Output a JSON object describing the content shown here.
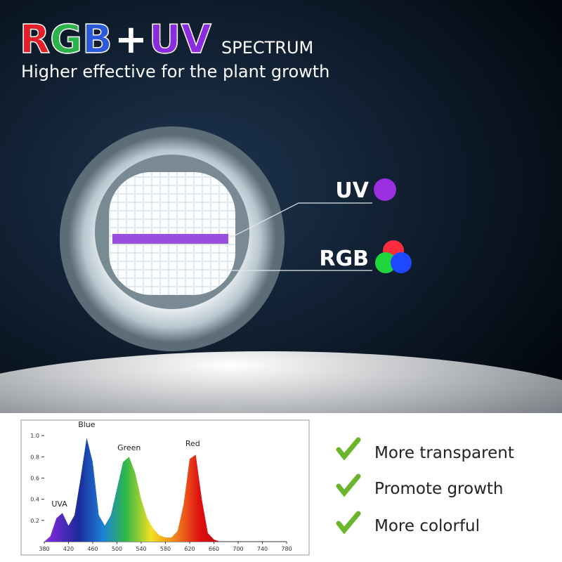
{
  "header": {
    "title_rgb": "RGB",
    "title_plus": "+",
    "title_uv": "UV",
    "title_spectrum": "SPECTRUM",
    "subtitle": "Higher effective for the plant growth"
  },
  "callouts": [
    {
      "label": "UV"
    },
    {
      "label": "RGB"
    }
  ],
  "features": [
    "More transparent",
    "Promote growth",
    "More colorful"
  ],
  "chart_data": {
    "type": "area",
    "x": [
      380,
      390,
      400,
      410,
      420,
      430,
      440,
      450,
      460,
      470,
      480,
      490,
      500,
      510,
      520,
      530,
      540,
      550,
      560,
      570,
      580,
      590,
      600,
      610,
      620,
      630,
      640,
      650,
      660,
      670,
      680,
      690,
      700
    ],
    "values": [
      0,
      0.05,
      0.22,
      0.27,
      0.15,
      0.25,
      0.6,
      0.98,
      0.75,
      0.25,
      0.15,
      0.25,
      0.5,
      0.75,
      0.8,
      0.65,
      0.4,
      0.22,
      0.12,
      0.06,
      0.04,
      0.04,
      0.1,
      0.35,
      0.78,
      0.82,
      0.4,
      0.08,
      0.02,
      0,
      0,
      0,
      0
    ],
    "annotations": [
      {
        "text": "UVA",
        "x": 405,
        "y": 0.33
      },
      {
        "text": "Blue",
        "x": 450,
        "y": 1.08
      },
      {
        "text": "Green",
        "x": 520,
        "y": 0.86
      },
      {
        "text": "Red",
        "x": 625,
        "y": 0.9
      }
    ],
    "xlim": [
      380,
      780
    ],
    "ylim": [
      0,
      1.1
    ],
    "xticks": [
      380,
      420,
      460,
      500,
      540,
      580,
      620,
      660,
      700,
      740,
      780
    ],
    "yticks": [
      0.2,
      0.4,
      0.6,
      0.8,
      {
        "value": 1,
        "label": "1.0"
      }
    ]
  }
}
